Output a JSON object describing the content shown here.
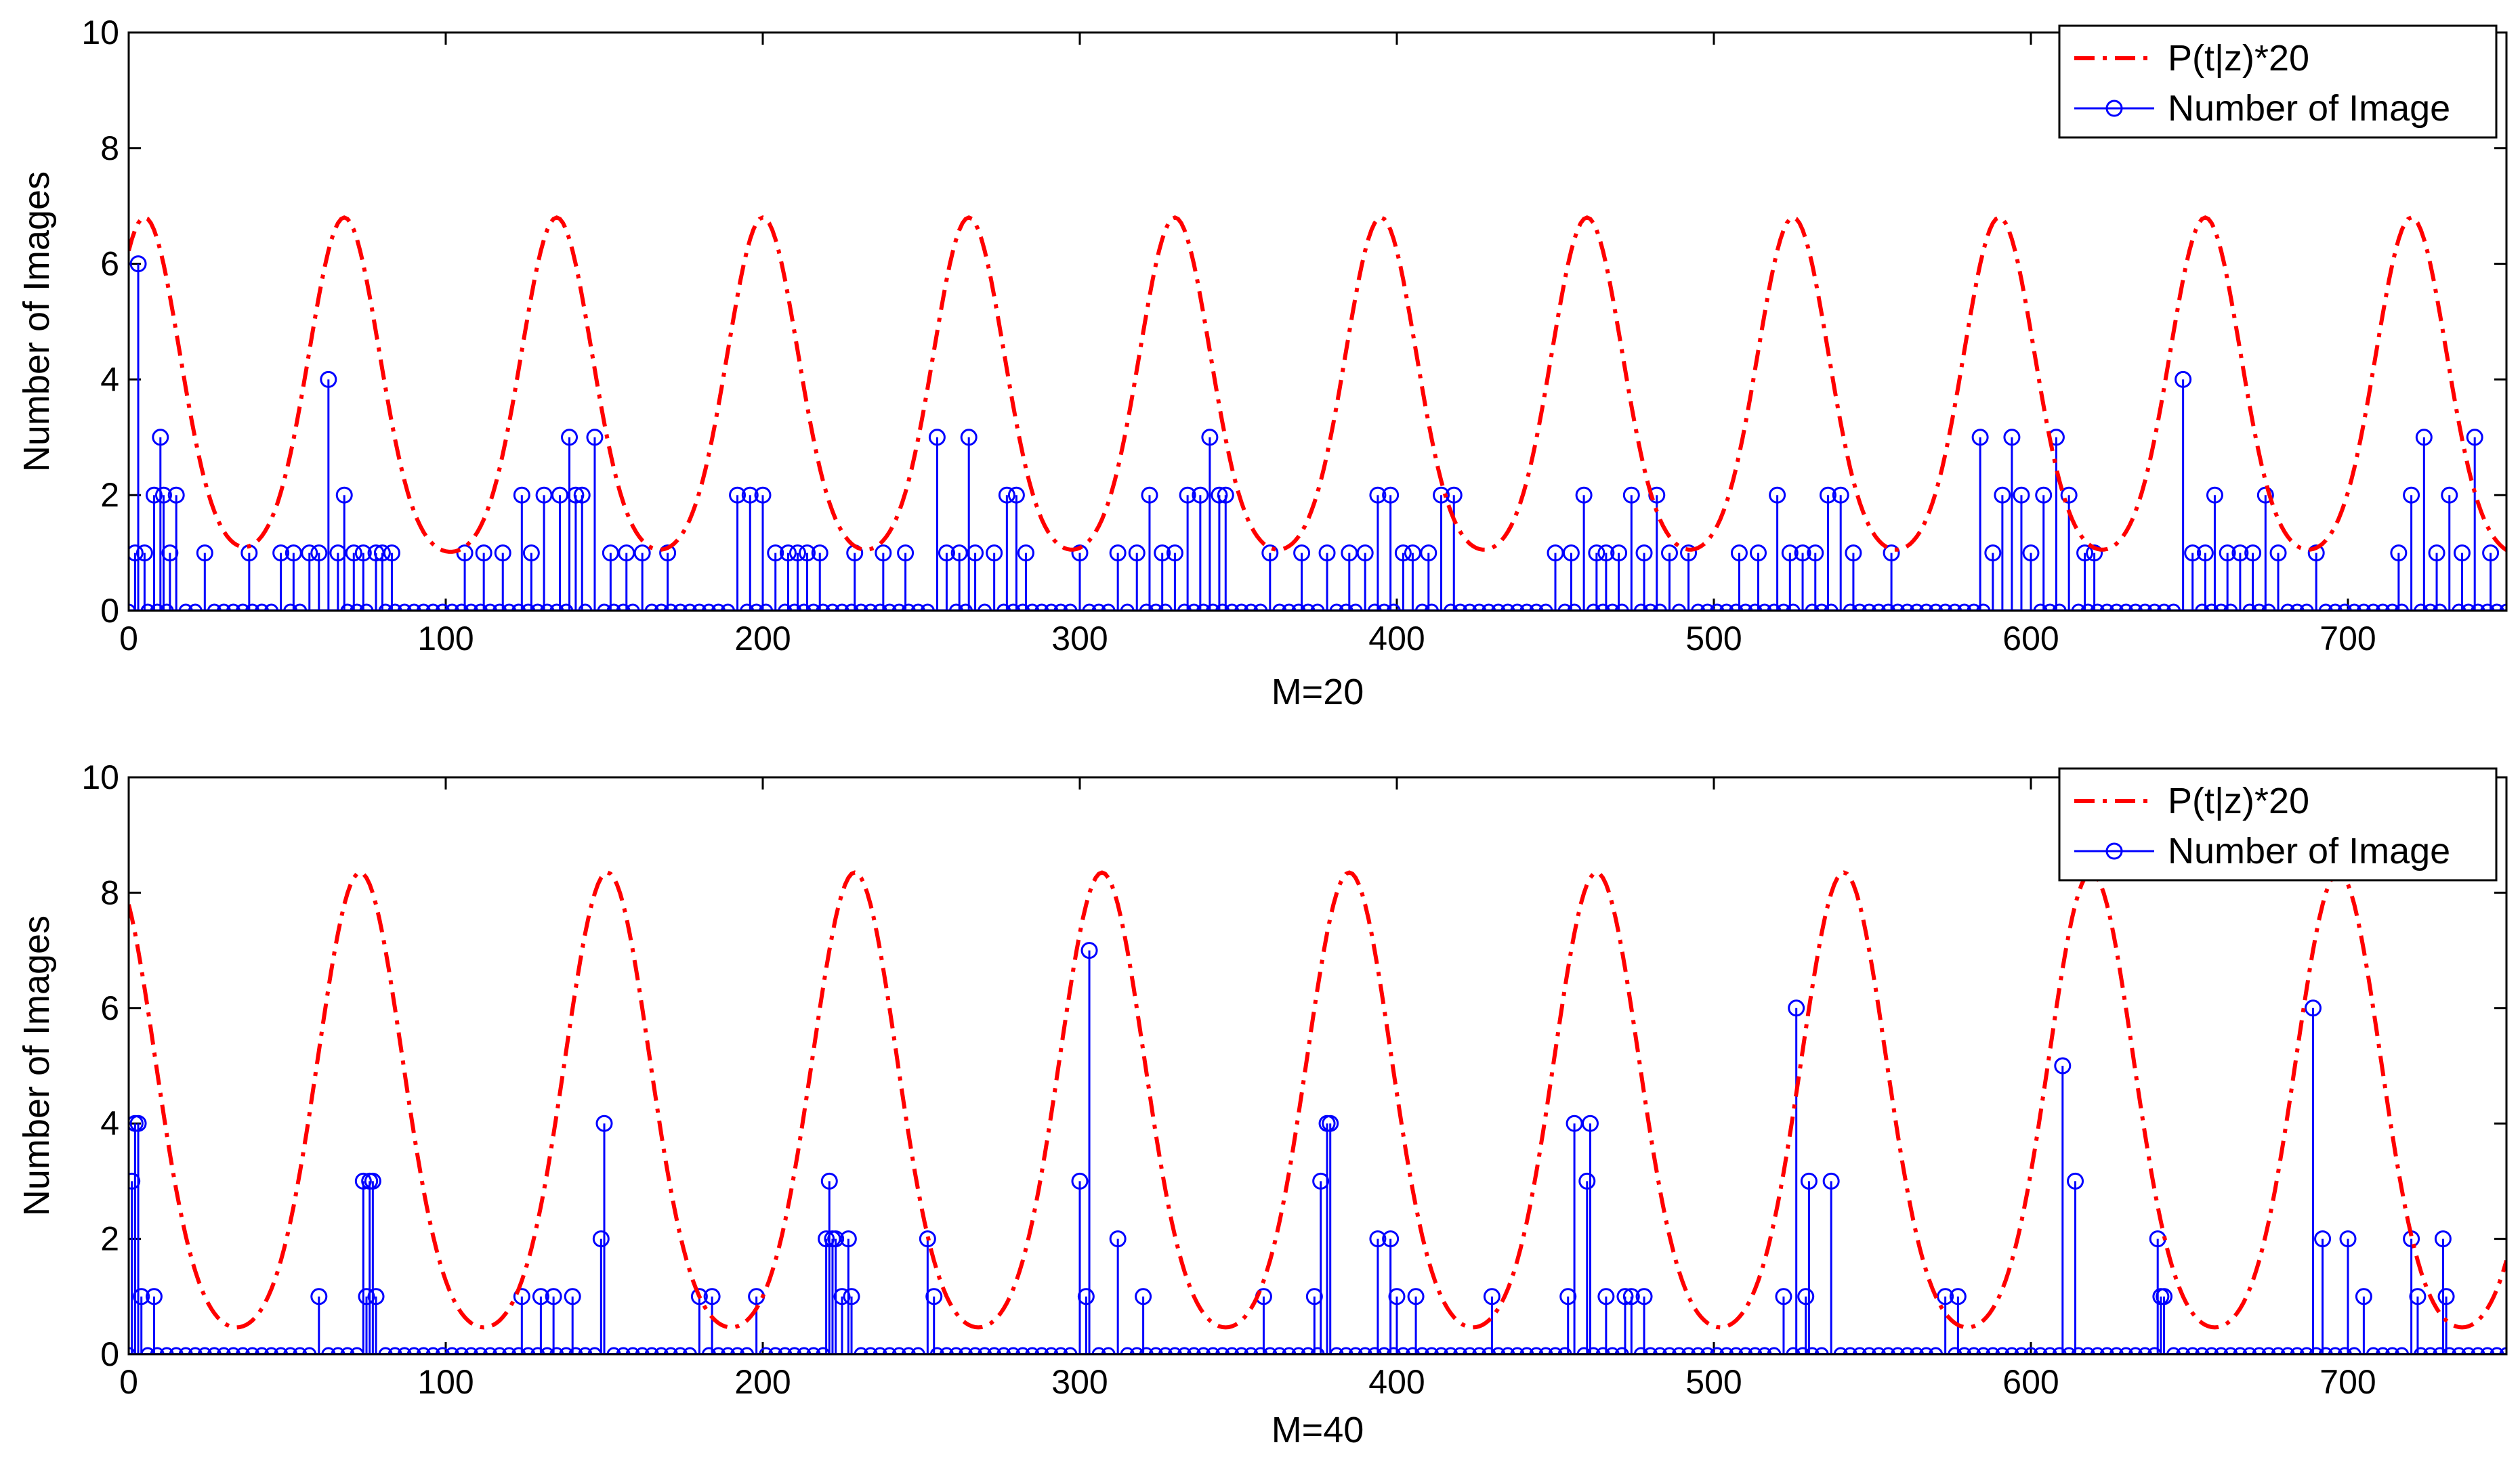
{
  "chart_data": [
    {
      "type": "stem+line",
      "title": "",
      "xlabel": "M=20",
      "ylabel": "Number of Images",
      "xlim": [
        0,
        750
      ],
      "ylim": [
        0,
        10
      ],
      "xticks": [
        0,
        100,
        200,
        300,
        400,
        500,
        600,
        700
      ],
      "xtick_labels": [
        "0",
        "100",
        "200",
        "300",
        "400",
        "500",
        "600",
        "700"
      ],
      "yticks": [
        0,
        2,
        4,
        6,
        8,
        10
      ],
      "ytick_labels": [
        "0",
        "2",
        "4",
        "6",
        "8",
        "10"
      ],
      "legend_position": "top-right",
      "series": [
        {
          "name": "P(t|z)*20",
          "kind": "line",
          "color": "#ff0000",
          "style": "dash-dot",
          "peak_value": 6.8,
          "trough_value": 0.9,
          "peak_positions": [
            5,
            68,
            135,
            200,
            265,
            330,
            395,
            460,
            525,
            590,
            655,
            720
          ]
        },
        {
          "name": "Number of Image",
          "kind": "stem",
          "color": "#0000ff",
          "marker": "o",
          "baseline_value": 0,
          "points": [
            [
              2,
              1
            ],
            [
              3,
              6
            ],
            [
              5,
              1
            ],
            [
              8,
              2
            ],
            [
              10,
              3
            ],
            [
              11,
              2
            ],
            [
              13,
              1
            ],
            [
              15,
              2
            ],
            [
              24,
              1
            ],
            [
              38,
              1
            ],
            [
              48,
              1
            ],
            [
              52,
              1
            ],
            [
              57,
              1
            ],
            [
              60,
              1
            ],
            [
              63,
              4
            ],
            [
              66,
              1
            ],
            [
              68,
              2
            ],
            [
              71,
              1
            ],
            [
              74,
              1
            ],
            [
              78,
              1
            ],
            [
              80,
              1
            ],
            [
              83,
              1
            ],
            [
              106,
              1
            ],
            [
              112,
              1
            ],
            [
              118,
              1
            ],
            [
              124,
              2
            ],
            [
              127,
              1
            ],
            [
              131,
              2
            ],
            [
              136,
              2
            ],
            [
              139,
              3
            ],
            [
              141,
              2
            ],
            [
              143,
              2
            ],
            [
              147,
              3
            ],
            [
              152,
              1
            ],
            [
              157,
              1
            ],
            [
              162,
              1
            ],
            [
              170,
              1
            ],
            [
              192,
              2
            ],
            [
              196,
              2
            ],
            [
              200,
              2
            ],
            [
              204,
              1
            ],
            [
              208,
              1
            ],
            [
              211,
              1
            ],
            [
              214,
              1
            ],
            [
              218,
              1
            ],
            [
              229,
              1
            ],
            [
              238,
              1
            ],
            [
              245,
              1
            ],
            [
              255,
              3
            ],
            [
              258,
              1
            ],
            [
              262,
              1
            ],
            [
              265,
              3
            ],
            [
              267,
              1
            ],
            [
              273,
              1
            ],
            [
              277,
              2
            ],
            [
              280,
              2
            ],
            [
              283,
              1
            ],
            [
              300,
              1
            ],
            [
              312,
              1
            ],
            [
              318,
              1
            ],
            [
              322,
              2
            ],
            [
              326,
              1
            ],
            [
              330,
              1
            ],
            [
              334,
              2
            ],
            [
              338,
              2
            ],
            [
              341,
              3
            ],
            [
              344,
              2
            ],
            [
              346,
              2
            ],
            [
              360,
              1
            ],
            [
              370,
              1
            ],
            [
              378,
              1
            ],
            [
              385,
              1
            ],
            [
              390,
              1
            ],
            [
              394,
              2
            ],
            [
              398,
              2
            ],
            [
              402,
              1
            ],
            [
              405,
              1
            ],
            [
              410,
              1
            ],
            [
              414,
              2
            ],
            [
              418,
              2
            ],
            [
              450,
              1
            ],
            [
              455,
              1
            ],
            [
              459,
              2
            ],
            [
              463,
              1
            ],
            [
              466,
              1
            ],
            [
              470,
              1
            ],
            [
              474,
              2
            ],
            [
              478,
              1
            ],
            [
              482,
              2
            ],
            [
              486,
              1
            ],
            [
              492,
              1
            ],
            [
              508,
              1
            ],
            [
              514,
              1
            ],
            [
              520,
              2
            ],
            [
              524,
              1
            ],
            [
              528,
              1
            ],
            [
              532,
              1
            ],
            [
              536,
              2
            ],
            [
              540,
              2
            ],
            [
              544,
              1
            ],
            [
              556,
              1
            ],
            [
              584,
              3
            ],
            [
              588,
              1
            ],
            [
              591,
              2
            ],
            [
              594,
              3
            ],
            [
              597,
              2
            ],
            [
              600,
              1
            ],
            [
              604,
              2
            ],
            [
              608,
              3
            ],
            [
              612,
              2
            ],
            [
              617,
              1
            ],
            [
              620,
              1
            ],
            [
              648,
              4
            ],
            [
              651,
              1
            ],
            [
              655,
              1
            ],
            [
              658,
              2
            ],
            [
              662,
              1
            ],
            [
              666,
              1
            ],
            [
              670,
              1
            ],
            [
              674,
              2
            ],
            [
              678,
              1
            ],
            [
              690,
              1
            ],
            [
              716,
              1
            ],
            [
              720,
              2
            ],
            [
              724,
              3
            ],
            [
              728,
              1
            ],
            [
              732,
              2
            ],
            [
              736,
              1
            ],
            [
              740,
              3
            ],
            [
              745,
              1
            ]
          ]
        }
      ]
    },
    {
      "type": "stem+line",
      "title": "",
      "xlabel": "M=40",
      "ylabel": "Number of Images",
      "xlim": [
        0,
        750
      ],
      "ylim": [
        0,
        10
      ],
      "xticks": [
        0,
        100,
        200,
        300,
        400,
        500,
        600,
        700
      ],
      "xtick_labels": [
        "0",
        "100",
        "200",
        "300",
        "400",
        "500",
        "600",
        "700"
      ],
      "yticks": [
        0,
        2,
        4,
        6,
        8,
        10
      ],
      "ytick_labels": [
        "0",
        "2",
        "4",
        "6",
        "8",
        "10"
      ],
      "legend_position": "top-right",
      "series": [
        {
          "name": "P(t|z)*20",
          "kind": "line",
          "color": "#ff0000",
          "style": "dash-dot",
          "peak_value": 8.35,
          "trough_value": 0.25,
          "peak_positions": [
            -5,
            73,
            151,
            229,
            307,
            385,
            463,
            541,
            619,
            697,
            775
          ]
        },
        {
          "name": "Number of Image",
          "kind": "stem",
          "color": "#0000ff",
          "marker": "o",
          "baseline_value": 0,
          "points": [
            [
              1,
              3
            ],
            [
              2,
              4
            ],
            [
              3,
              4
            ],
            [
              4,
              1
            ],
            [
              8,
              1
            ],
            [
              60,
              1
            ],
            [
              74,
              3
            ],
            [
              75,
              1
            ],
            [
              76,
              3
            ],
            [
              77,
              3
            ],
            [
              78,
              1
            ],
            [
              124,
              1
            ],
            [
              130,
              1
            ],
            [
              134,
              1
            ],
            [
              140,
              1
            ],
            [
              149,
              2
            ],
            [
              150,
              4
            ],
            [
              180,
              1
            ],
            [
              184,
              1
            ],
            [
              198,
              1
            ],
            [
              220,
              2
            ],
            [
              221,
              3
            ],
            [
              222,
              2
            ],
            [
              223,
              2
            ],
            [
              225,
              1
            ],
            [
              227,
              2
            ],
            [
              228,
              1
            ],
            [
              252,
              2
            ],
            [
              254,
              1
            ],
            [
              300,
              3
            ],
            [
              302,
              1
            ],
            [
              303,
              7
            ],
            [
              312,
              2
            ],
            [
              320,
              1
            ],
            [
              358,
              1
            ],
            [
              374,
              1
            ],
            [
              376,
              3
            ],
            [
              378,
              4
            ],
            [
              379,
              4
            ],
            [
              394,
              2
            ],
            [
              398,
              2
            ],
            [
              400,
              1
            ],
            [
              406,
              1
            ],
            [
              430,
              1
            ],
            [
              454,
              1
            ],
            [
              456,
              4
            ],
            [
              460,
              3
            ],
            [
              461,
              4
            ],
            [
              466,
              1
            ],
            [
              472,
              1
            ],
            [
              474,
              1
            ],
            [
              478,
              1
            ],
            [
              522,
              1
            ],
            [
              526,
              6
            ],
            [
              529,
              1
            ],
            [
              530,
              3
            ],
            [
              537,
              3
            ],
            [
              573,
              1
            ],
            [
              577,
              1
            ],
            [
              610,
              5
            ],
            [
              614,
              3
            ],
            [
              640,
              2
            ],
            [
              641,
              1
            ],
            [
              642,
              1
            ],
            [
              689,
              6
            ],
            [
              692,
              2
            ],
            [
              700,
              2
            ],
            [
              705,
              1
            ],
            [
              720,
              2
            ],
            [
              722,
              1
            ],
            [
              730,
              2
            ],
            [
              731,
              1
            ]
          ]
        }
      ]
    }
  ]
}
